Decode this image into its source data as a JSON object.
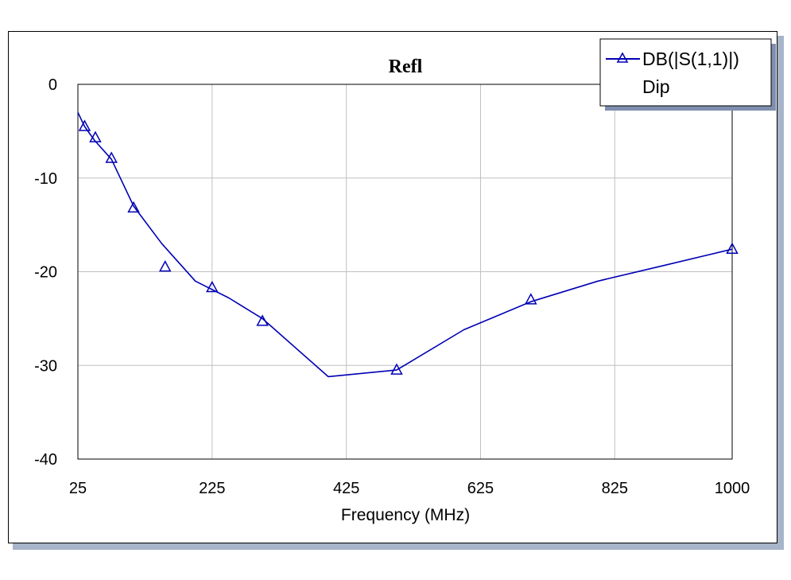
{
  "chart_data": {
    "type": "line",
    "title": "Refl",
    "xlabel": "Frequency (MHz)",
    "ylabel": "",
    "xlim": [
      25,
      1000
    ],
    "ylim": [
      -40,
      0
    ],
    "x_ticks": [
      25,
      225,
      425,
      625,
      825,
      1000
    ],
    "y_ticks": [
      0,
      -10,
      -20,
      -30,
      -40
    ],
    "x_tick_labels": [
      "25",
      "225",
      "425",
      "625",
      "825",
      "1000"
    ],
    "y_tick_labels": [
      "0",
      "-10",
      "-20",
      "-30",
      "-40"
    ],
    "grid": true,
    "legend": {
      "placement": "top-right",
      "entries": [
        "DB(|S(1,1)|)",
        "Dip"
      ]
    },
    "series": [
      {
        "name": "DB(|S(1,1)|)",
        "color": "#0000b4",
        "marker": "triangle",
        "x": [
          25,
          35,
          50,
          75,
          108,
          150,
          200,
          250,
          300,
          398,
          500,
          600,
          700,
          800,
          900,
          1000
        ],
        "y": [
          -3.0,
          -4.5,
          -6.0,
          -8.0,
          -13.0,
          -17.0,
          -21.0,
          -22.8,
          -25.0,
          -31.2,
          -30.5,
          -26.2,
          -23.2,
          -21.0,
          -19.3,
          -17.6
        ],
        "marker_x": [
          35,
          51,
          75,
          108,
          155,
          225,
          300,
          500,
          700,
          1000
        ],
        "marker_y": [
          -4.5,
          -5.7,
          -7.9,
          -13.2,
          -19.5,
          -21.7,
          -25.3,
          -30.5,
          -23.0,
          -17.6
        ]
      }
    ]
  },
  "colors": {
    "frame_shadow": "#a7b4c9",
    "grid": "#c0c0c0",
    "legend_shadow": "#7f8fae",
    "series": "#0000b4"
  }
}
